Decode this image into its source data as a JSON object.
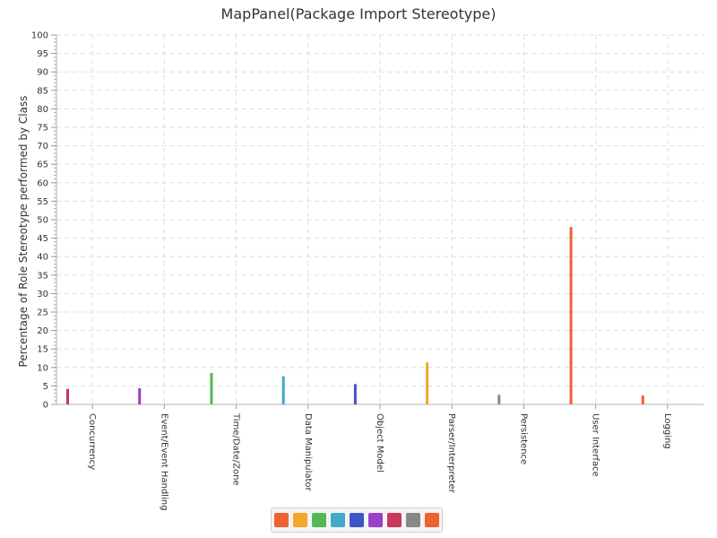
{
  "chart_data": {
    "type": "bar",
    "title": "MapPanel(Package Import Stereotype)",
    "xlabel": "",
    "ylabel": "Percentage of Role Stereotype performed by Class",
    "ylim": [
      0,
      100
    ],
    "yticks": [
      0,
      5,
      10,
      15,
      20,
      25,
      30,
      35,
      40,
      45,
      50,
      55,
      60,
      65,
      70,
      75,
      80,
      85,
      90,
      95,
      100
    ],
    "grid": true,
    "legend_position": "bottom",
    "categories": [
      "Concurrency",
      "Event/Event Handling",
      "Time/Date/Zone",
      "Data Manipulator",
      "Object Model",
      "Parser/Interpreter",
      "Persistence",
      "User Interface",
      "Logging"
    ],
    "values": [
      4.2,
      4.4,
      8.5,
      7.6,
      5.5,
      11.4,
      2.6,
      48.0,
      2.4
    ],
    "bar_colors": [
      "#c8385a",
      "#9a3fc8",
      "#57b757",
      "#41a9c9",
      "#3e55c8",
      "#f3a62c",
      "#888888",
      "#f06030",
      "#f06030"
    ],
    "legend_colors": [
      "#f06030",
      "#f3a62c",
      "#57b757",
      "#41a9c9",
      "#3e55c8",
      "#9a3fc8",
      "#c8385a",
      "#888888",
      "#f06030"
    ]
  }
}
